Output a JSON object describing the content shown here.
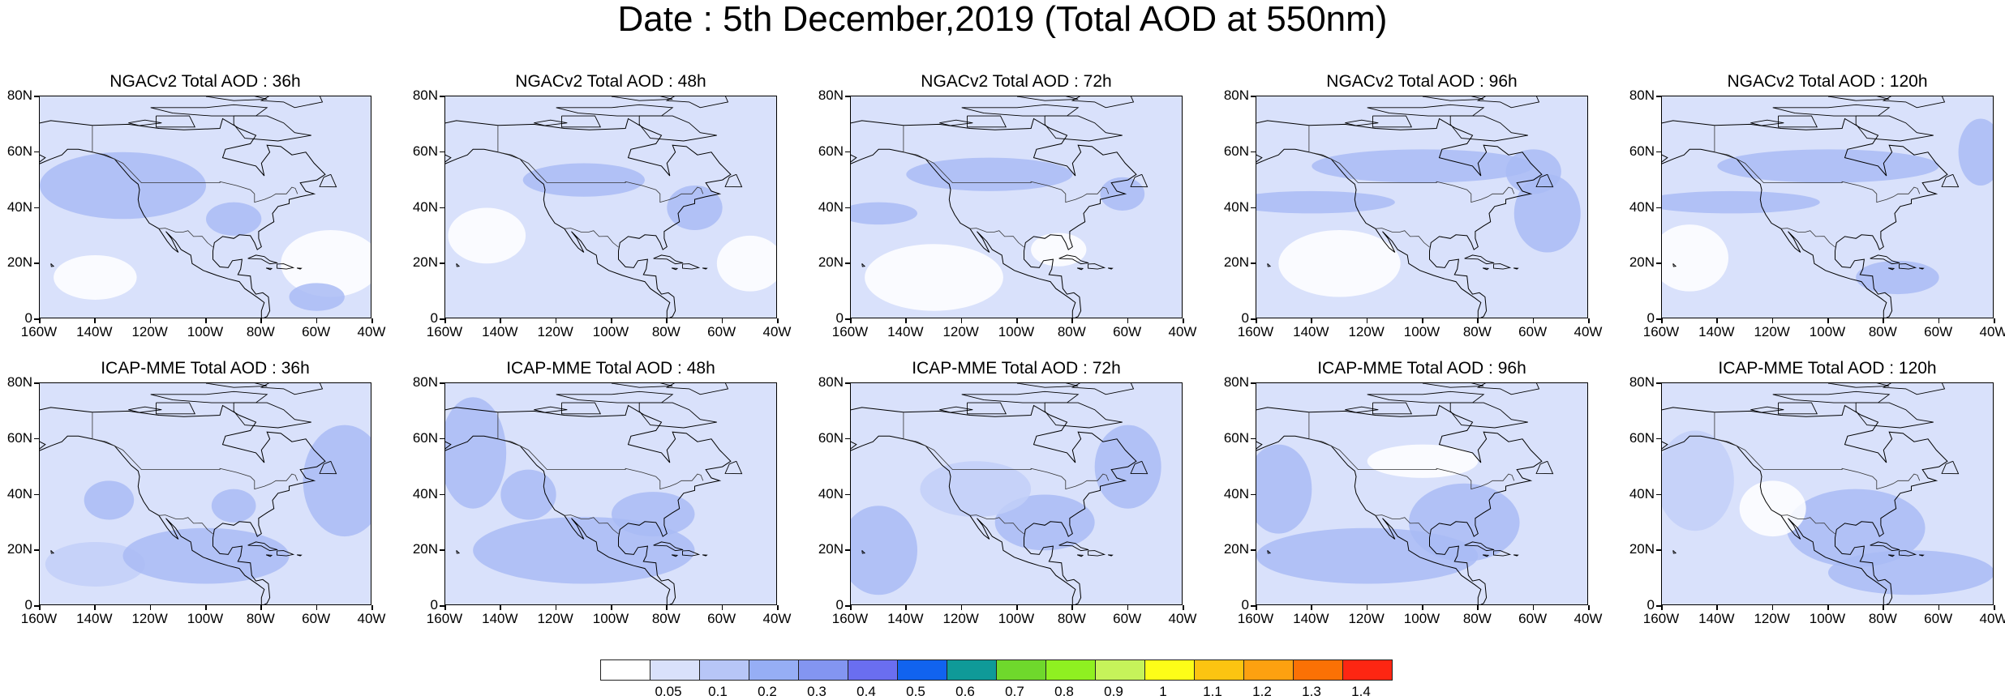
{
  "title": "Date : 5th December,2019 (Total AOD at 550nm)",
  "panels": [
    {
      "title": "NGACv2 Total AOD : 36h",
      "row": 0,
      "col": 0
    },
    {
      "title": "NGACv2 Total AOD : 48h",
      "row": 0,
      "col": 1
    },
    {
      "title": "NGACv2 Total AOD : 72h",
      "row": 0,
      "col": 2
    },
    {
      "title": "NGACv2 Total AOD : 96h",
      "row": 0,
      "col": 3
    },
    {
      "title": "NGACv2 Total AOD : 120h",
      "row": 0,
      "col": 4
    },
    {
      "title": "ICAP-MME Total AOD : 36h",
      "row": 1,
      "col": 0
    },
    {
      "title": "ICAP-MME Total AOD : 48h",
      "row": 1,
      "col": 1
    },
    {
      "title": "ICAP-MME Total AOD : 72h",
      "row": 1,
      "col": 2
    },
    {
      "title": "ICAP-MME Total AOD : 96h",
      "row": 1,
      "col": 3
    },
    {
      "title": "ICAP-MME Total AOD : 120h",
      "row": 1,
      "col": 4
    }
  ],
  "map_extent": {
    "lon": [
      -160,
      -40
    ],
    "lat": [
      0,
      80
    ]
  },
  "lat_ticks": [
    "0",
    "20N",
    "40N",
    "60N",
    "80N"
  ],
  "lon_ticks": [
    "160W",
    "140W",
    "120W",
    "100W",
    "80W",
    "60W",
    "40W"
  ],
  "colorbar": {
    "colors": [
      "#ffffff",
      "#d9e1fb",
      "#b7c6f7",
      "#96aef5",
      "#8395f1",
      "#6a6ef0",
      "#1163ef",
      "#0f9a98",
      "#6fd82c",
      "#8ff021",
      "#c6f35a",
      "#fdfd18",
      "#fcc411",
      "#fda110",
      "#fb7105",
      "#fd2612"
    ],
    "labels": [
      "0.05",
      "0.1",
      "0.2",
      "0.3",
      "0.4",
      "0.5",
      "0.6",
      "0.7",
      "0.8",
      "0.9",
      "1",
      "1.1",
      "1.2",
      "1.3",
      "1.4"
    ]
  },
  "map_colors": {
    "background": "#d9e1fb",
    "light": "#c2cff8",
    "medium": "#a9bbf5",
    "clear": "#ffffff"
  }
}
